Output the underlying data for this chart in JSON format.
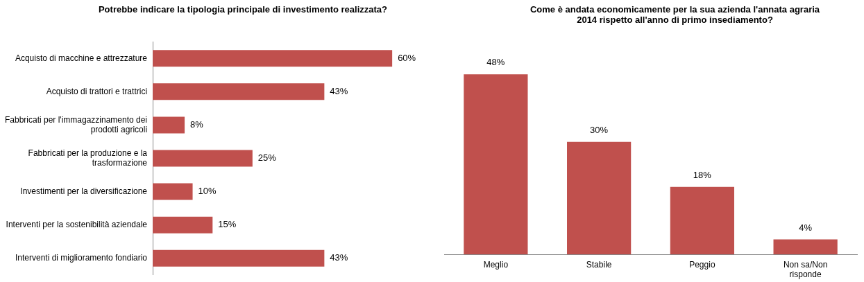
{
  "chart_data": [
    {
      "type": "bar",
      "orientation": "horizontal",
      "title": "Potrebbe indicare la tipologia principale di investimento realizzata?",
      "categories": [
        "Acquisto di macchine e attrezzature",
        "Acquisto di trattori e trattrici",
        "Fabbricati per l'immagazzinamento dei prodotti agricoli",
        "Fabbricati per la produzione e la trasformazione",
        "Investimenti per la diversificazione",
        "Interventi per la sostenibilità aziendale",
        "Interventi di miglioramento fondiario"
      ],
      "values": [
        60,
        43,
        8,
        25,
        10,
        15,
        43
      ],
      "value_labels": [
        "60%",
        "43%",
        "8%",
        "25%",
        "10%",
        "15%",
        "43%"
      ],
      "color": "#c0504d",
      "legend": false,
      "tick_labels": "y"
    },
    {
      "type": "bar",
      "title": "Come è andata economicamente per la sua azienda l'annata agraria 2014 rispetto all'anno di primo insediamento?",
      "categories": [
        "Meglio",
        "Stabile",
        "Peggio",
        "Non sa/Non risponde"
      ],
      "values": [
        48,
        30,
        18,
        4
      ],
      "value_labels": [
        "48%",
        "30%",
        "18%",
        "4%"
      ],
      "color": "#c0504d",
      "legend": false,
      "tick_labels": "x"
    }
  ]
}
